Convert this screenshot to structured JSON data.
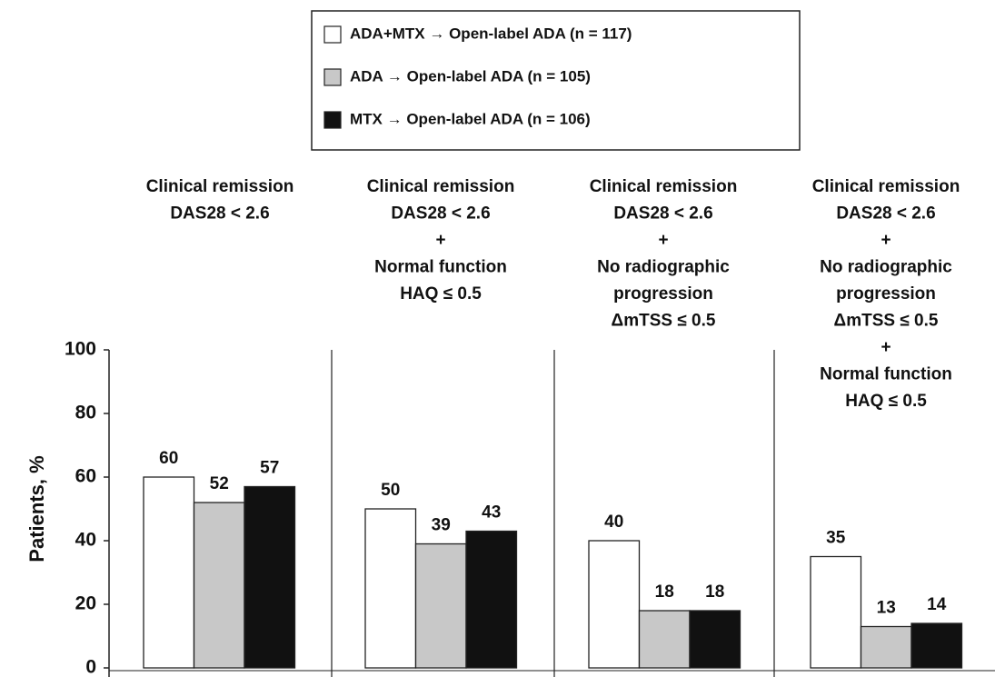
{
  "chart_data": {
    "type": "bar",
    "y_label": "Patients, %",
    "categories": [
      [
        "Clinical remission",
        "DAS28 < 2.6"
      ],
      [
        "Clinical remission",
        "DAS28 < 2.6",
        "+",
        "Normal function",
        "HAQ ≤ 0.5"
      ],
      [
        "Clinical remission",
        "DAS28 < 2.6",
        "+",
        "No radiographic",
        "progression",
        "ΔmTSS ≤ 0.5"
      ],
      [
        "Clinical remission",
        "DAS28 < 2.6",
        "+",
        "No radiographic",
        "progression",
        "ΔmTSS ≤ 0.5",
        "+",
        "Normal function",
        "HAQ ≤ 0.5"
      ]
    ],
    "series": [
      {
        "name": "ADA+MTX → Open-label ADA (n = 117)",
        "color": "#ffffff",
        "values": [
          60,
          50,
          40,
          35
        ]
      },
      {
        "name": "ADA → Open-label ADA (n = 105)",
        "color": "#c8c8c8",
        "values": [
          52,
          39,
          18,
          13
        ]
      },
      {
        "name": "MTX → Open-label ADA (n = 106)",
        "color": "#111111",
        "values": [
          57,
          43,
          18,
          14
        ]
      }
    ],
    "ylim": [
      0,
      100
    ],
    "yticks": [
      0,
      20,
      40,
      60,
      80,
      100
    ]
  }
}
